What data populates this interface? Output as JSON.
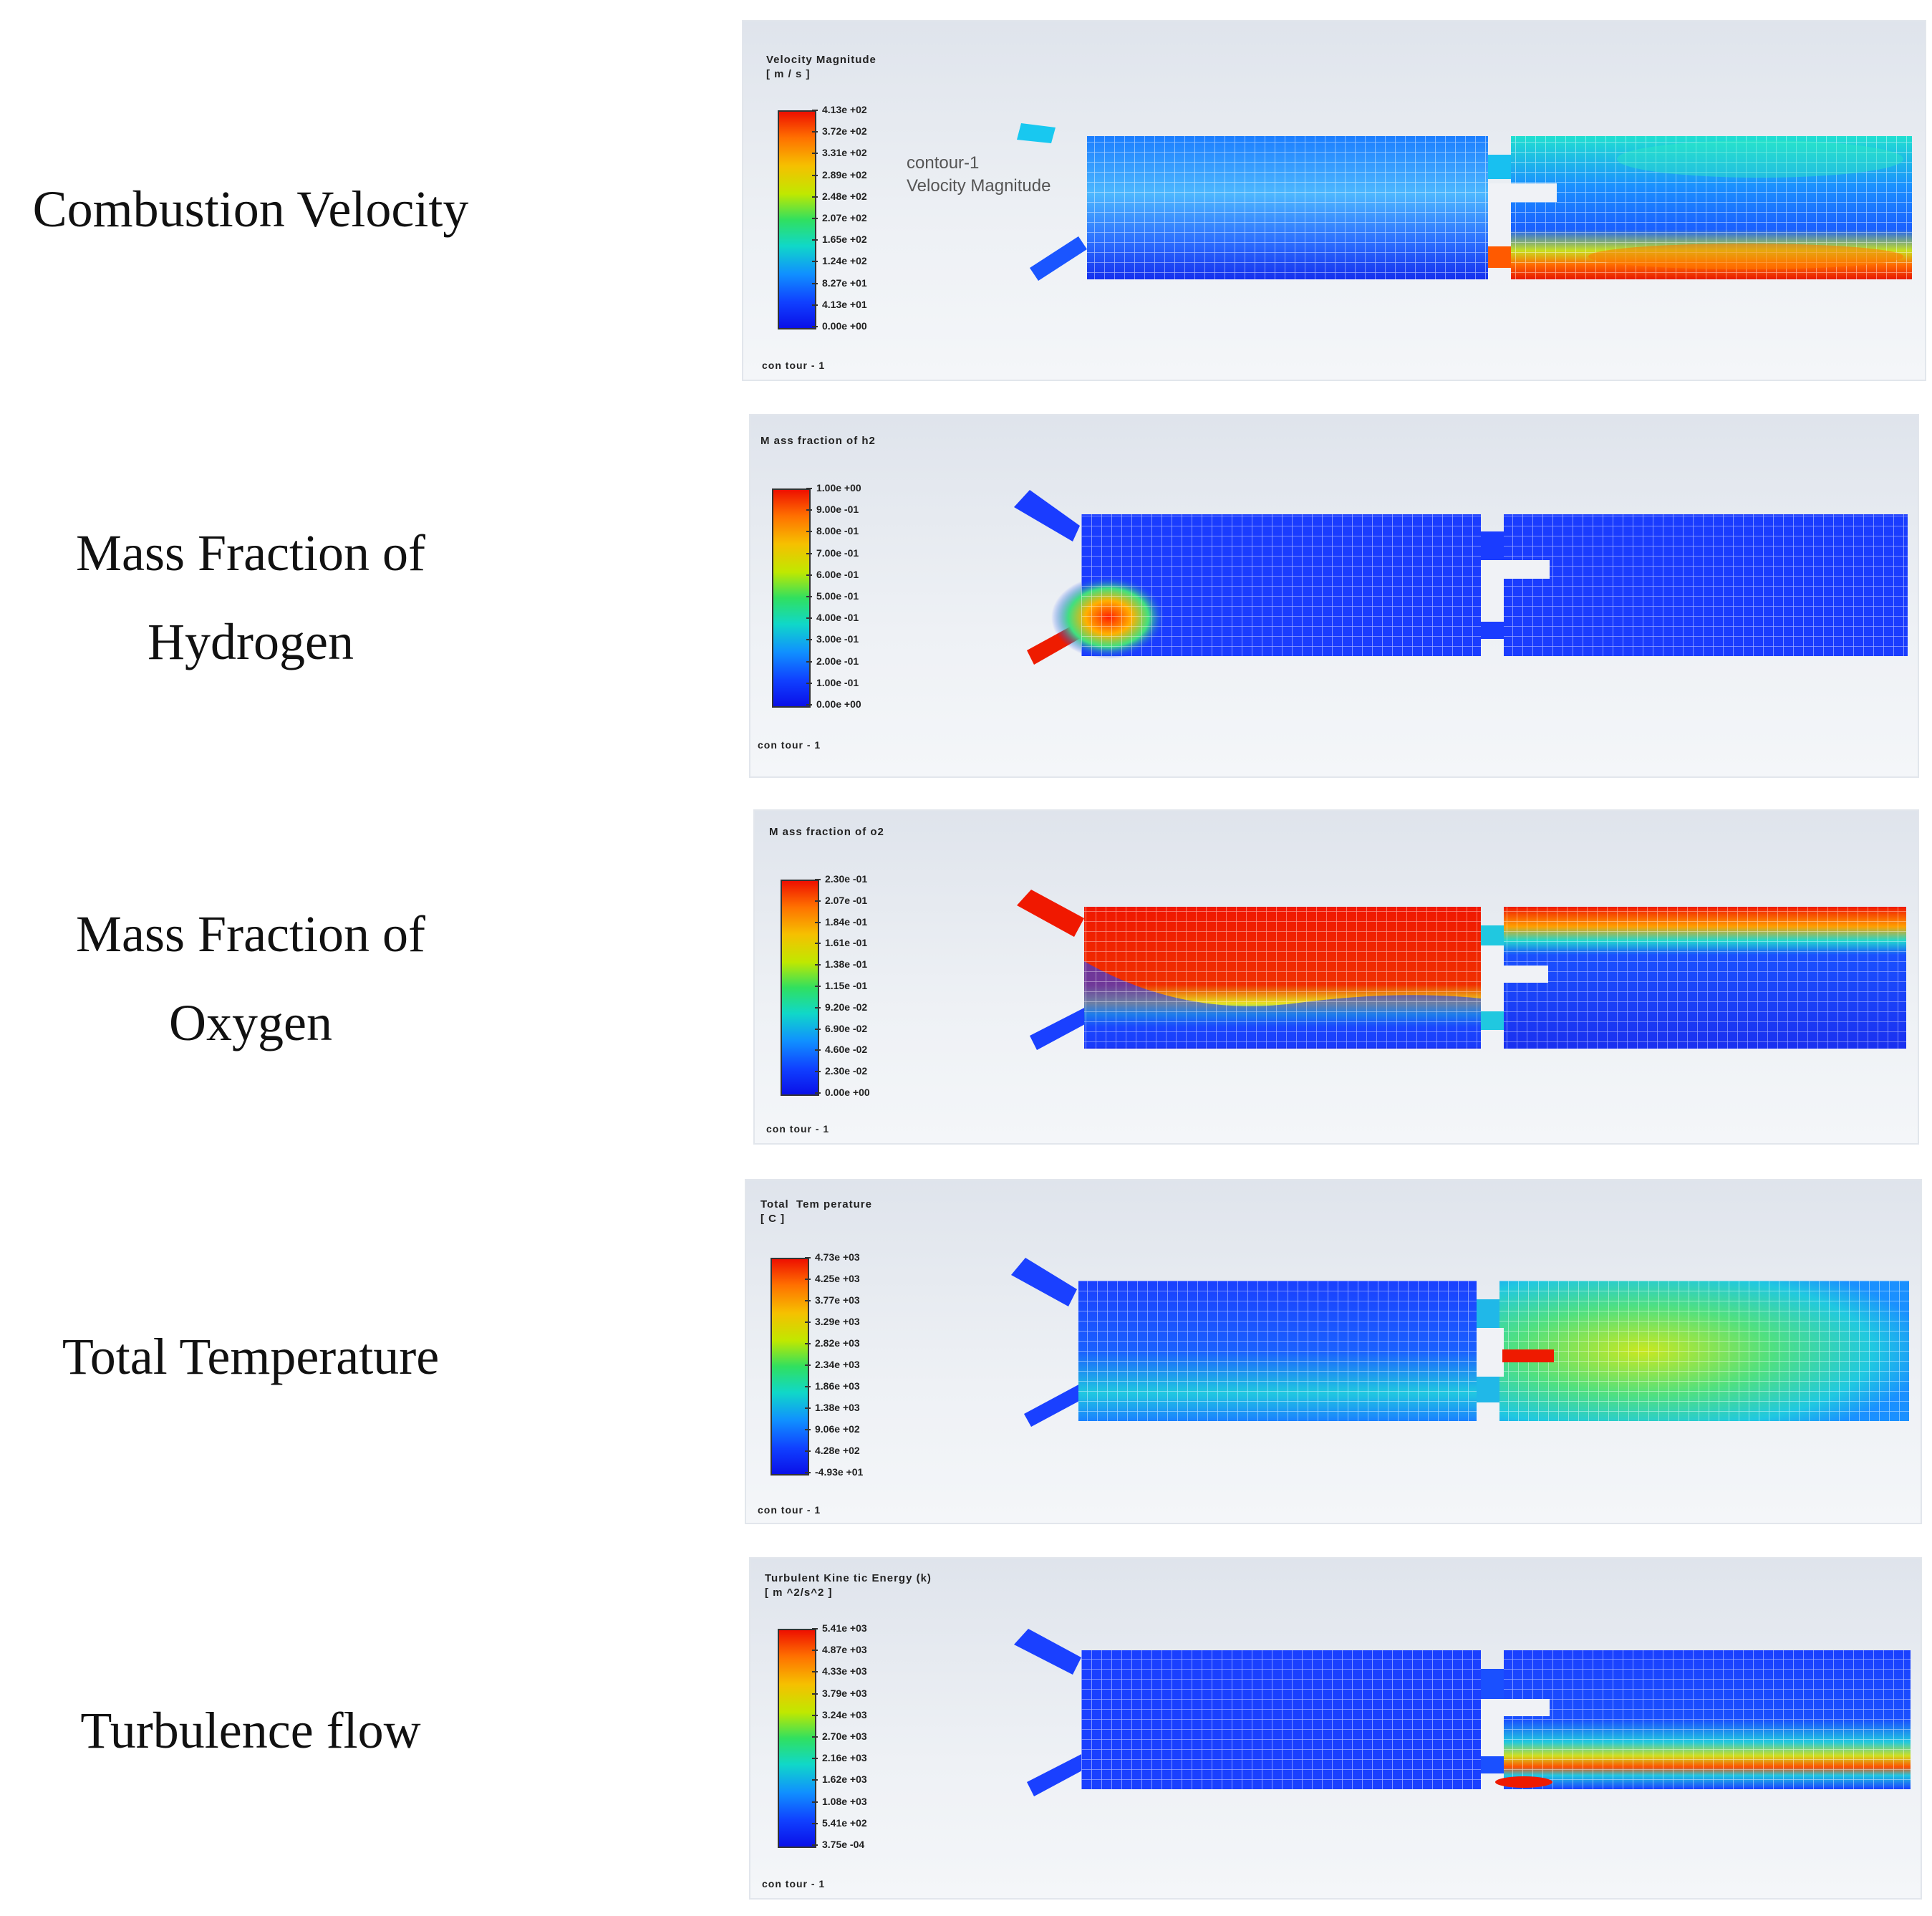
{
  "panels": [
    {
      "label": "Combustion Velocity",
      "legend_title": "Velocity Magnitude",
      "legend_unit": "[ m / s ]",
      "ticks": [
        "4.13e +02",
        "3.72e +02",
        "3.31e +02",
        "2.89e +02",
        "2.48e +02",
        "2.07e +02",
        "1.65e +02",
        "1.24e +02",
        "8.27e +01",
        "4.13e +01",
        "0.00e +00"
      ],
      "footer": "con tour - 1",
      "annotation_line1": "contour-1",
      "annotation_line2": "Velocity Magnitude"
    },
    {
      "label": "Mass Fraction of Hydrogen",
      "label_line1": "Mass Fraction of",
      "label_line2": "Hydrogen",
      "legend_title": "M ass fraction of h2",
      "ticks": [
        "1.00e +00",
        "9.00e -01",
        "8.00e -01",
        "7.00e -01",
        "6.00e -01",
        "5.00e -01",
        "4.00e -01",
        "3.00e -01",
        "2.00e -01",
        "1.00e -01",
        "0.00e +00"
      ],
      "footer": "con tour - 1"
    },
    {
      "label": "Mass Fraction of Oxygen",
      "label_line1": "Mass Fraction of",
      "label_line2": "Oxygen",
      "legend_title": "M ass fraction of o2",
      "ticks": [
        "2.30e -01",
        "2.07e -01",
        "1.84e -01",
        "1.61e -01",
        "1.38e -01",
        "1.15e -01",
        "9.20e -02",
        "6.90e -02",
        "4.60e -02",
        "2.30e -02",
        "0.00e +00"
      ],
      "footer": "con tour - 1"
    },
    {
      "label": "Total Temperature",
      "legend_title": "Total  Tem perature",
      "legend_unit": "[ C ]",
      "ticks": [
        "4.73e +03",
        "4.25e +03",
        "3.77e +03",
        "3.29e +03",
        "2.82e +03",
        "2.34e +03",
        "1.86e +03",
        "1.38e +03",
        "9.06e +02",
        "4.28e +02",
        "-4.93e +01"
      ],
      "footer": "con tour - 1"
    },
    {
      "label": "Turbulence flow",
      "legend_title": "Turbulent Kine tic Energy (k)",
      "legend_unit": "[ m ^2/s^2 ]",
      "ticks": [
        "5.41e +03",
        "4.87e +03",
        "4.33e +03",
        "3.79e +03",
        "3.24e +03",
        "2.70e +03",
        "2.16e +03",
        "1.62e +03",
        "1.08e +03",
        "5.41e +02",
        "3.75e -04"
      ],
      "footer": "con tour - 1"
    }
  ]
}
